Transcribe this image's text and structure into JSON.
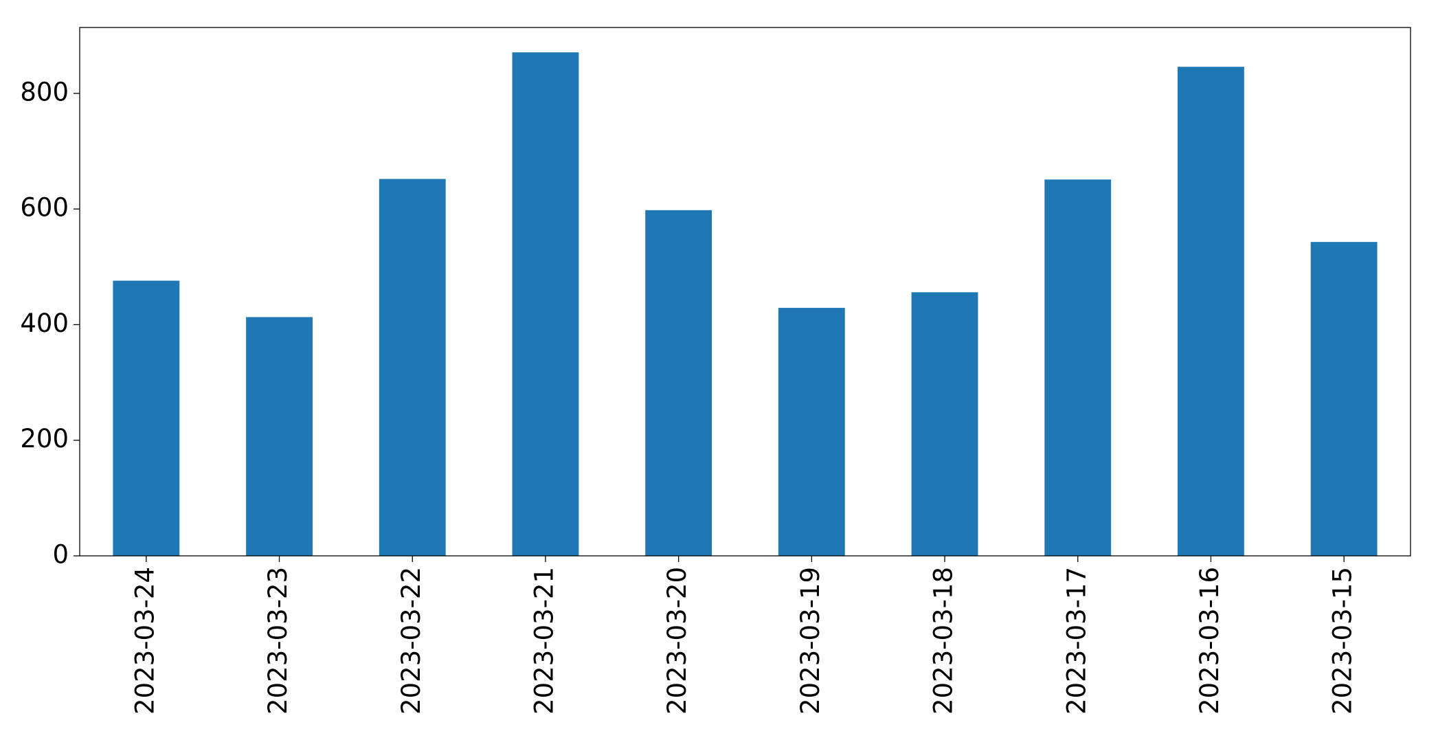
{
  "chart_data": {
    "type": "bar",
    "categories": [
      "2023-03-24",
      "2023-03-23",
      "2023-03-22",
      "2023-03-21",
      "2023-03-20",
      "2023-03-19",
      "2023-03-18",
      "2023-03-17",
      "2023-03-16",
      "2023-03-15"
    ],
    "values": [
      476,
      413,
      652,
      871,
      598,
      429,
      456,
      651,
      846,
      543
    ],
    "color": "#1f77b4",
    "ylim": [
      0,
      914
    ],
    "yticks": [
      0,
      200,
      400,
      600,
      800
    ],
    "grid": false
  }
}
